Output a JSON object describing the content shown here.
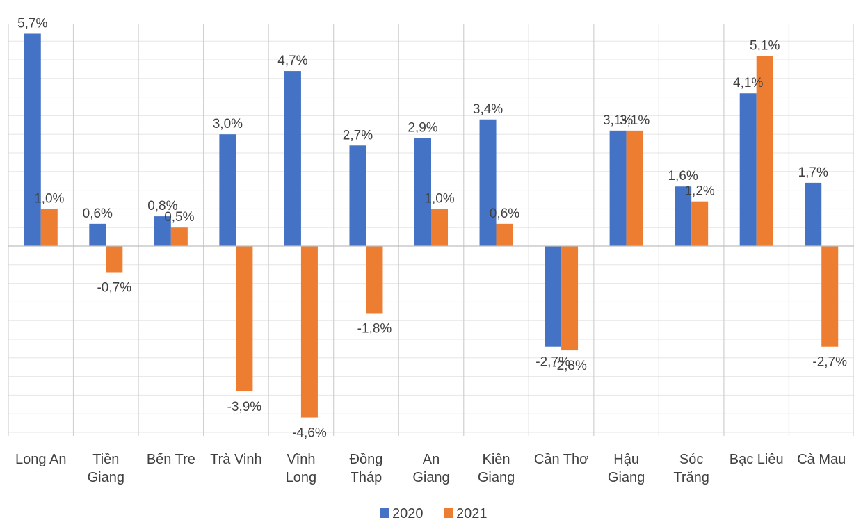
{
  "chart_data": {
    "type": "bar",
    "title": "",
    "xlabel": "",
    "ylabel": "",
    "grid": true,
    "legend_position": "bottom",
    "categories": [
      [
        "Long An"
      ],
      [
        "Tiền",
        "Giang"
      ],
      [
        "Bến Tre"
      ],
      [
        "Trà Vinh"
      ],
      [
        "Vĩnh",
        "Long"
      ],
      [
        "Đồng",
        "Tháp"
      ],
      [
        "An",
        "Giang"
      ],
      [
        "Kiên",
        "Giang"
      ],
      [
        "Cần Thơ"
      ],
      [
        "Hậu",
        "Giang"
      ],
      [
        "Sóc",
        "Trăng"
      ],
      [
        "Bạc Liêu"
      ],
      [
        "Cà Mau"
      ]
    ],
    "series": [
      {
        "name": "2020",
        "color": "#4472C4",
        "values": [
          5.7,
          0.6,
          0.8,
          3.0,
          4.7,
          2.7,
          2.9,
          3.4,
          -2.7,
          3.1,
          1.6,
          4.1,
          1.7
        ],
        "labels": [
          "5,7%",
          "0,6%",
          "0,8%",
          "3,0%",
          "4,7%",
          "2,7%",
          "2,9%",
          "3,4%",
          "-2,7%",
          "3,1%",
          "1,6%",
          "4,1%",
          "1,7%"
        ]
      },
      {
        "name": "2021",
        "color": "#ED7D31",
        "values": [
          1.0,
          -0.7,
          0.5,
          -3.9,
          -4.6,
          -1.8,
          1.0,
          0.6,
          -2.8,
          3.1,
          1.2,
          5.1,
          -2.7
        ],
        "labels": [
          "1,0%",
          "-0,7%",
          "0,5%",
          "-3,9%",
          "-4,6%",
          "-1,8%",
          "1,0%",
          "0,6%",
          "-2,8%",
          "3,1%",
          "1,2%",
          "5,1%",
          "-2,7%"
        ]
      }
    ],
    "ylim": [
      -5,
      6.5
    ]
  }
}
